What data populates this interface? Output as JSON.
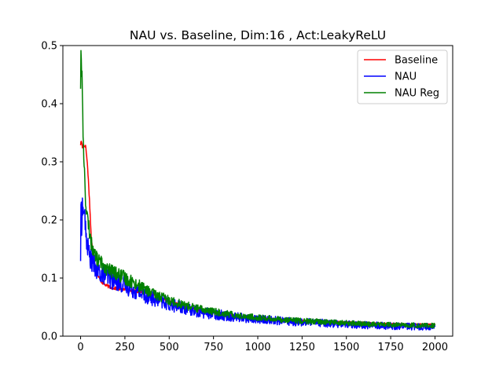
{
  "chart_data": {
    "type": "line",
    "title": "NAU vs. Baseline, Dim:16 , Act:LeakyReLU",
    "xlabel": "",
    "ylabel": "",
    "xlim": [
      -100,
      2100
    ],
    "ylim": [
      0.0,
      0.5
    ],
    "xticks": [
      0,
      250,
      500,
      750,
      1000,
      1250,
      1500,
      1750,
      2000
    ],
    "xtick_labels": [
      "0",
      "250",
      "500",
      "750",
      "1000",
      "1250",
      "1500",
      "1750",
      "2000"
    ],
    "yticks": [
      0.0,
      0.1,
      0.2,
      0.3,
      0.4,
      0.5
    ],
    "ytick_labels": [
      "0.0",
      "0.1",
      "0.2",
      "0.3",
      "0.4",
      "0.5"
    ],
    "grid": false,
    "legend_position": "top-right",
    "series": [
      {
        "name": "Baseline",
        "color": "#ff0000",
        "x": [
          0,
          5,
          10,
          15,
          20,
          25,
          30,
          40,
          50,
          60,
          70,
          80,
          90,
          100,
          120,
          140,
          160,
          180,
          200,
          250,
          300,
          350,
          400,
          450,
          500,
          600,
          700,
          800,
          900,
          1000,
          1200,
          1400,
          1600,
          1800,
          2000
        ],
        "y": [
          0.33,
          0.337,
          0.325,
          0.332,
          0.326,
          0.329,
          0.324,
          0.29,
          0.235,
          0.17,
          0.14,
          0.125,
          0.11,
          0.102,
          0.093,
          0.088,
          0.085,
          0.083,
          0.082,
          0.08,
          0.078,
          0.076,
          0.072,
          0.066,
          0.06,
          0.05,
          0.043,
          0.038,
          0.034,
          0.031,
          0.027,
          0.025,
          0.023,
          0.021,
          0.02
        ],
        "noise": 0.0015
      },
      {
        "name": "NAU",
        "color": "#0000ff",
        "x": [
          0,
          3,
          6,
          10,
          15,
          20,
          25,
          30,
          40,
          50,
          60,
          70,
          80,
          90,
          100,
          125,
          150,
          175,
          200,
          250,
          300,
          350,
          400,
          450,
          500,
          600,
          700,
          800,
          900,
          1000,
          1200,
          1400,
          1600,
          1800,
          2000
        ],
        "y": [
          0.137,
          0.245,
          0.19,
          0.225,
          0.21,
          0.22,
          0.2,
          0.17,
          0.155,
          0.14,
          0.13,
          0.125,
          0.12,
          0.115,
          0.11,
          0.108,
          0.102,
          0.098,
          0.095,
          0.088,
          0.08,
          0.072,
          0.066,
          0.06,
          0.055,
          0.046,
          0.04,
          0.036,
          0.032,
          0.029,
          0.025,
          0.022,
          0.019,
          0.017,
          0.016
        ],
        "noise": 0.009
      },
      {
        "name": "NAU Reg",
        "color": "#008000",
        "x": [
          0,
          2,
          4,
          6,
          8,
          10,
          15,
          20,
          25,
          30,
          40,
          50,
          60,
          70,
          80,
          90,
          100,
          125,
          150,
          175,
          200,
          250,
          300,
          350,
          400,
          450,
          500,
          600,
          700,
          800,
          900,
          1000,
          1200,
          1400,
          1600,
          1800,
          2000
        ],
        "y": [
          0.43,
          0.5,
          0.47,
          0.44,
          0.46,
          0.42,
          0.33,
          0.3,
          0.26,
          0.22,
          0.2,
          0.18,
          0.16,
          0.15,
          0.14,
          0.135,
          0.13,
          0.125,
          0.115,
          0.112,
          0.108,
          0.1,
          0.092,
          0.083,
          0.074,
          0.068,
          0.062,
          0.052,
          0.045,
          0.04,
          0.035,
          0.032,
          0.027,
          0.024,
          0.021,
          0.019,
          0.018
        ],
        "noise": 0.006
      }
    ]
  }
}
